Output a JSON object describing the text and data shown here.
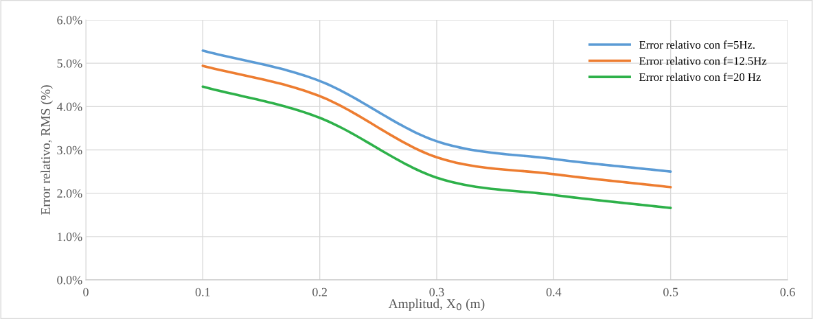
{
  "chart_data": {
    "type": "line",
    "xlabel": "Amplitud, X$_{0}$ (m)",
    "ylabel": "Error relativo, RMS (%)",
    "x": [
      0.1,
      0.2,
      0.3,
      0.4,
      0.5
    ],
    "series": [
      {
        "name": "Error relativo con f=5Hz.",
        "color": "#5b9bd5",
        "values": [
          5.29,
          4.59,
          3.2,
          2.79,
          2.5
        ]
      },
      {
        "name": "Error relativo con f=12.5Hz",
        "color": "#ed7d31",
        "values": [
          4.94,
          4.24,
          2.83,
          2.44,
          2.14
        ]
      },
      {
        "name": "Error relativo con f=20 Hz",
        "color": "#2eb14a",
        "values": [
          4.46,
          3.74,
          2.36,
          1.96,
          1.66
        ]
      }
    ],
    "xlim": [
      0,
      0.6
    ],
    "xticks": [
      0,
      0.1,
      0.2,
      0.3,
      0.4,
      0.5,
      0.6
    ],
    "ylim": [
      0,
      6
    ],
    "yticks": [
      {
        "value": 0,
        "label": "0.0%"
      },
      {
        "value": 1,
        "label": "1.0%"
      },
      {
        "value": 2,
        "label": "2.0%"
      },
      {
        "value": 3,
        "label": "3.0%"
      },
      {
        "value": 4,
        "label": "4.0%"
      },
      {
        "value": 5,
        "label": "5.0%"
      },
      {
        "value": 6,
        "label": "6.0%"
      }
    ],
    "grid": true,
    "legend": "top right",
    "marker": "none",
    "line_style": "solid"
  }
}
